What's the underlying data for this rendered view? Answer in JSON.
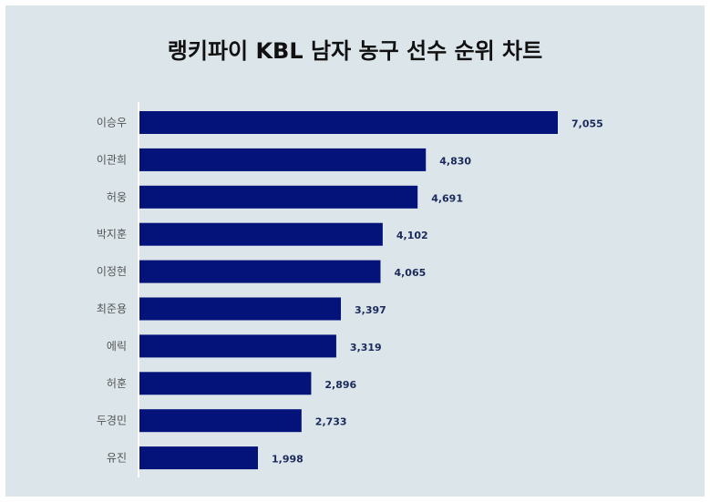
{
  "title": "랭키파이 KBL 남자 농구 선수 순위 차트",
  "colors": {
    "bar": "#03137a",
    "background": "#dbe5ea",
    "axis": "#ffffff"
  },
  "chart_data": {
    "type": "bar",
    "orientation": "horizontal",
    "title": "랭키파이 KBL 남자 농구 선수 순위 차트",
    "categories": [
      "이승우",
      "이관희",
      "허웅",
      "박지훈",
      "이정현",
      "최준용",
      "에릭",
      "허훈",
      "두경민",
      "유진"
    ],
    "values": [
      7055,
      4830,
      4691,
      4102,
      4065,
      3397,
      3319,
      2896,
      2733,
      1998
    ],
    "value_labels": [
      "7,055",
      "4,830",
      "4,691",
      "4,102",
      "4,065",
      "3,397",
      "3,319",
      "2,896",
      "2,733",
      "1,998"
    ],
    "xlim": [
      0,
      7055
    ],
    "grid": false,
    "legend": "none"
  }
}
